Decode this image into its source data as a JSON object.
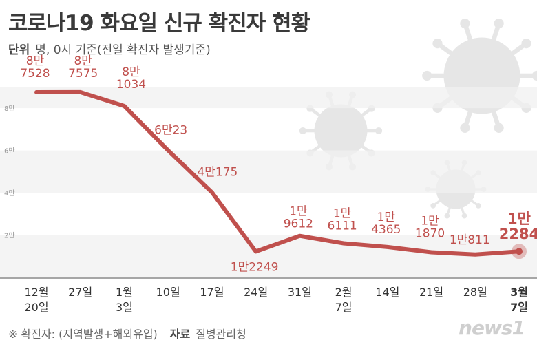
{
  "title": "코로나19 화요일 신규 확진자 현황",
  "unit_label": "단위",
  "unit_text": "명, 0시 기준(전일 확진자 발생기준)",
  "footnote": "※ 확진자: (지역발생+해외유입)",
  "source_label": "자료",
  "source": "질병관리청",
  "logo": "news1",
  "colors": {
    "line": "#c0504d",
    "highlight": "#c0504d",
    "band": "#f0f0f0",
    "text": "#333333"
  },
  "chart_data": {
    "type": "line",
    "title": "코로나19 화요일 신규 확진자 현황",
    "ylabel": "명",
    "ylim": [
      0,
      90000
    ],
    "y_ticks": [
      {
        "value": 20000,
        "label": "2만"
      },
      {
        "value": 40000,
        "label": "4만"
      },
      {
        "value": 60000,
        "label": "6만"
      },
      {
        "value": 80000,
        "label": "8만"
      }
    ],
    "categories": [
      [
        "12월",
        "20일"
      ],
      [
        "27일"
      ],
      [
        "1월",
        "3일"
      ],
      [
        "10일"
      ],
      [
        "17일"
      ],
      [
        "24일"
      ],
      [
        "31일"
      ],
      [
        "2월",
        "7일"
      ],
      [
        "14일"
      ],
      [
        "21일"
      ],
      [
        "28일"
      ],
      [
        "3월",
        "7일"
      ]
    ],
    "values": [
      87528,
      87575,
      81034,
      60023,
      40175,
      12249,
      19612,
      16111,
      14365,
      11870,
      10811,
      12284
    ],
    "labels": [
      [
        "8만",
        "7528"
      ],
      [
        "8만",
        "7575"
      ],
      [
        "8만",
        "1034"
      ],
      [
        "6만23"
      ],
      [
        "4만175"
      ],
      [
        "1만2249"
      ],
      [
        "1만",
        "9612"
      ],
      [
        "1만",
        "6111"
      ],
      [
        "1만",
        "4365"
      ],
      [
        "1만",
        "1870"
      ],
      [
        "1만811"
      ],
      [
        "1만",
        "2284"
      ]
    ],
    "highlight_index": 11
  }
}
